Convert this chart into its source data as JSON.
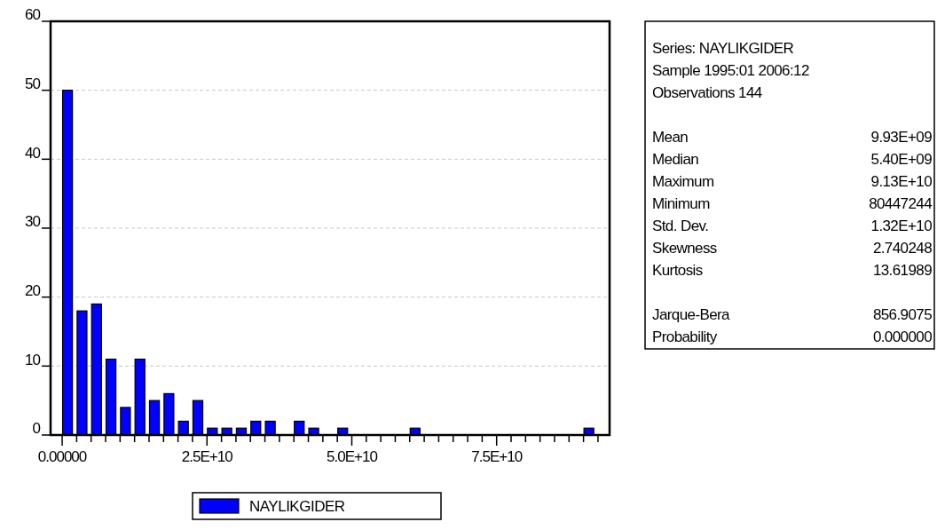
{
  "chart_data": {
    "type": "histogram",
    "bins": [
      0,
      2500000000,
      5000000000,
      7500000000,
      10000000000,
      12500000000,
      15000000000,
      17500000000,
      20000000000,
      22500000000,
      25000000000,
      27500000000,
      30000000000,
      32500000000,
      35000000000,
      37500000000,
      40000000000,
      42500000000,
      45000000000,
      47500000000,
      50000000000,
      52500000000,
      55000000000,
      57500000000,
      60000000000,
      62500000000,
      65000000000,
      67500000000,
      70000000000,
      72500000000,
      75000000000,
      77500000000,
      80000000000,
      82500000000,
      85000000000,
      87500000000,
      90000000000,
      92500000000
    ],
    "series": [
      {
        "name": "NAYLIKGIDER",
        "color": "#0000ff",
        "values": [
          50,
          18,
          19,
          11,
          4,
          11,
          5,
          6,
          2,
          5,
          1,
          1,
          1,
          2,
          2,
          0,
          2,
          1,
          0,
          1,
          0,
          0,
          0,
          0,
          1,
          0,
          0,
          0,
          0,
          0,
          0,
          0,
          0,
          0,
          0,
          0,
          1
        ]
      }
    ],
    "xlim": [
      -2000000000,
      94500000000
    ],
    "xticks": [
      {
        "value": 0,
        "label": "0.00000"
      },
      {
        "value": 2500000000,
        "label": null
      },
      {
        "value": 5000000000,
        "label": null
      },
      {
        "value": 7500000000,
        "label": null
      },
      {
        "value": 10000000000,
        "label": null
      },
      {
        "value": 12500000000,
        "label": null
      },
      {
        "value": 15000000000,
        "label": null
      },
      {
        "value": 17500000000,
        "label": null
      },
      {
        "value": 20000000000,
        "label": null
      },
      {
        "value": 22500000000,
        "label": null
      },
      {
        "value": 25000000000,
        "label": "2.5E+10"
      },
      {
        "value": 27500000000,
        "label": null
      },
      {
        "value": 30000000000,
        "label": null
      },
      {
        "value": 32500000000,
        "label": null
      },
      {
        "value": 35000000000,
        "label": null
      },
      {
        "value": 37500000000,
        "label": null
      },
      {
        "value": 40000000000,
        "label": null
      },
      {
        "value": 42500000000,
        "label": null
      },
      {
        "value": 45000000000,
        "label": null
      },
      {
        "value": 47500000000,
        "label": null
      },
      {
        "value": 50000000000,
        "label": "5.0E+10"
      },
      {
        "value": 52500000000,
        "label": null
      },
      {
        "value": 55000000000,
        "label": null
      },
      {
        "value": 57500000000,
        "label": null
      },
      {
        "value": 60000000000,
        "label": null
      },
      {
        "value": 62500000000,
        "label": null
      },
      {
        "value": 65000000000,
        "label": null
      },
      {
        "value": 67500000000,
        "label": null
      },
      {
        "value": 70000000000,
        "label": null
      },
      {
        "value": 72500000000,
        "label": null
      },
      {
        "value": 75000000000,
        "label": "7.5E+10"
      },
      {
        "value": 77500000000,
        "label": null
      },
      {
        "value": 80000000000,
        "label": null
      },
      {
        "value": 82500000000,
        "label": null
      },
      {
        "value": 85000000000,
        "label": null
      },
      {
        "value": 87500000000,
        "label": null
      },
      {
        "value": 90000000000,
        "label": null
      },
      {
        "value": 92500000000,
        "label": null
      }
    ],
    "ylim": [
      0,
      60
    ],
    "yticks": [
      0,
      10,
      20,
      30,
      40,
      50,
      60
    ],
    "grid": "y",
    "legend": "bottom",
    "annotations": [
      "Series: NAYLIKGIDER",
      "Sample 1995:01 2006:12",
      "Observations 144",
      "Mean 9.93E+09",
      "Median 5.40E+09",
      "Maximum 9.13E+10",
      "Minimum 80447244",
      "Std. Dev. 1.32E+10",
      "Skewness 2.740248",
      "Kurtosis 13.61989",
      "Jarque-Bera 856.9075",
      "Probability 0.000000"
    ]
  }
}
